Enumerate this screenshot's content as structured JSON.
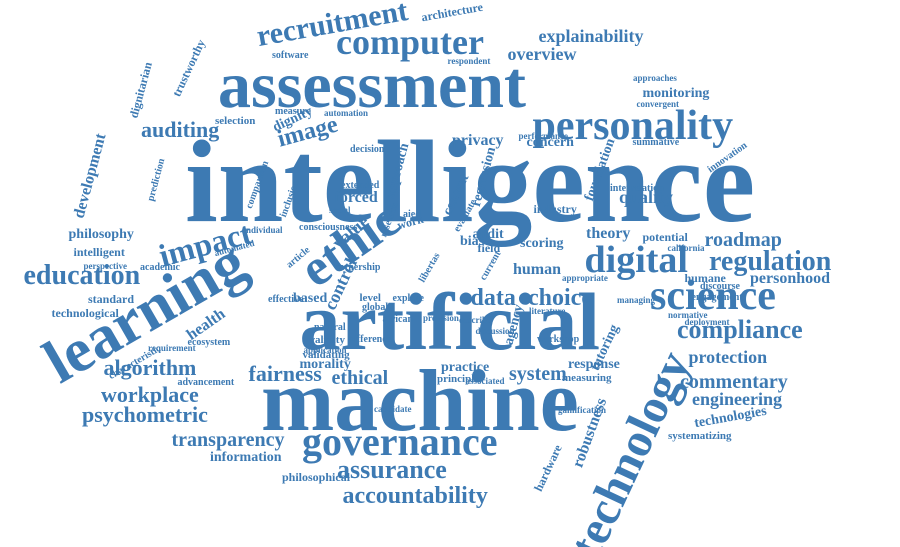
{
  "color": "#3d7ab3",
  "words": [
    {
      "t": "intelligence"
    },
    {
      "t": "machine"
    },
    {
      "t": "artificial"
    },
    {
      "t": "learning"
    },
    {
      "t": "assessment"
    },
    {
      "t": "personality"
    },
    {
      "t": "technology"
    },
    {
      "t": "governance"
    },
    {
      "t": "science"
    },
    {
      "t": "ethic"
    },
    {
      "t": "digital"
    },
    {
      "t": "computer"
    },
    {
      "t": "recruitment"
    },
    {
      "t": "impact"
    },
    {
      "t": "education"
    },
    {
      "t": "regulation"
    },
    {
      "t": "compliance"
    },
    {
      "t": "assurance"
    },
    {
      "t": "accountability"
    },
    {
      "t": "auditing"
    },
    {
      "t": "data"
    },
    {
      "t": "choice"
    },
    {
      "t": "image"
    },
    {
      "t": "algorithm"
    },
    {
      "t": "fairness"
    },
    {
      "t": "workplace"
    },
    {
      "t": "psychometric"
    },
    {
      "t": "transparency"
    },
    {
      "t": "ethical"
    },
    {
      "t": "system"
    },
    {
      "t": "roadmap"
    },
    {
      "t": "commentary"
    },
    {
      "t": "engineering"
    },
    {
      "t": "protection"
    },
    {
      "t": "technologies"
    },
    {
      "t": "overview"
    },
    {
      "t": "explainability"
    },
    {
      "t": "architecture"
    },
    {
      "t": "monitoring"
    },
    {
      "t": "privacy"
    },
    {
      "t": "human"
    },
    {
      "t": "theory"
    },
    {
      "t": "value"
    },
    {
      "t": "forced"
    },
    {
      "t": "development"
    },
    {
      "t": "philosophy"
    },
    {
      "t": "intelligent"
    },
    {
      "t": "standard"
    },
    {
      "t": "technological"
    },
    {
      "t": "trustworthy"
    },
    {
      "t": "dignitarian"
    },
    {
      "t": "prediction"
    },
    {
      "t": "selection"
    },
    {
      "t": "dignity"
    },
    {
      "t": "measure"
    },
    {
      "t": "software"
    },
    {
      "t": "respondent"
    },
    {
      "t": "approaches"
    },
    {
      "t": "convergent"
    },
    {
      "t": "concern"
    },
    {
      "t": "summative"
    },
    {
      "t": "quality"
    },
    {
      "t": "industry"
    },
    {
      "t": "foundation"
    },
    {
      "t": "regression"
    },
    {
      "t": "context"
    },
    {
      "t": "approach"
    },
    {
      "t": "audit"
    },
    {
      "t": "scoring"
    },
    {
      "t": "control"
    },
    {
      "t": "health"
    },
    {
      "t": "based"
    },
    {
      "t": "level"
    },
    {
      "t": "morality"
    },
    {
      "t": "validity"
    },
    {
      "t": "validating"
    },
    {
      "t": "information"
    },
    {
      "t": "philosophical"
    },
    {
      "t": "response"
    },
    {
      "t": "practice"
    },
    {
      "t": "principle"
    },
    {
      "t": "associated"
    },
    {
      "t": "agency"
    },
    {
      "t": "tutoring"
    },
    {
      "t": "measuring"
    },
    {
      "t": "robustness"
    },
    {
      "t": "hardware"
    },
    {
      "t": "personhood"
    },
    {
      "t": "humane"
    },
    {
      "t": "discourse"
    },
    {
      "t": "engagement"
    },
    {
      "t": "deployment"
    },
    {
      "t": "normative"
    },
    {
      "t": "potential"
    },
    {
      "t": "california"
    },
    {
      "t": "systematizing"
    },
    {
      "t": "gamification"
    },
    {
      "t": "candidate"
    },
    {
      "t": "academic"
    },
    {
      "t": "perspective"
    },
    {
      "t": "automated"
    },
    {
      "t": "individual"
    },
    {
      "t": "ecosystem"
    },
    {
      "t": "requirement"
    },
    {
      "t": "characteristic"
    },
    {
      "t": "advancement"
    },
    {
      "t": "effective"
    },
    {
      "t": "natural"
    },
    {
      "t": "application"
    },
    {
      "t": "difference"
    },
    {
      "t": "global"
    },
    {
      "t": "african"
    },
    {
      "t": "explore"
    },
    {
      "t": "current"
    },
    {
      "t": "bias"
    },
    {
      "t": "field"
    },
    {
      "t": "work"
    },
    {
      "t": "aied"
    },
    {
      "t": "extended"
    },
    {
      "t": "decision"
    },
    {
      "t": "inclusion"
    },
    {
      "t": "comparison"
    },
    {
      "t": "consciousness"
    },
    {
      "t": "article"
    },
    {
      "t": "research"
    },
    {
      "t": "social"
    },
    {
      "t": "innovation"
    },
    {
      "t": "interrelation"
    },
    {
      "t": "performance"
    },
    {
      "t": "automation"
    },
    {
      "t": "appropriate"
    },
    {
      "t": "managing"
    },
    {
      "t": "discussion"
    },
    {
      "t": "literature"
    },
    {
      "t": "workshop"
    },
    {
      "t": "describe"
    },
    {
      "t": "provision"
    },
    {
      "t": "ownership"
    },
    {
      "t": "libertas"
    },
    {
      "t": "evaluate"
    },
    {
      "t": "benefit"
    }
  ]
}
